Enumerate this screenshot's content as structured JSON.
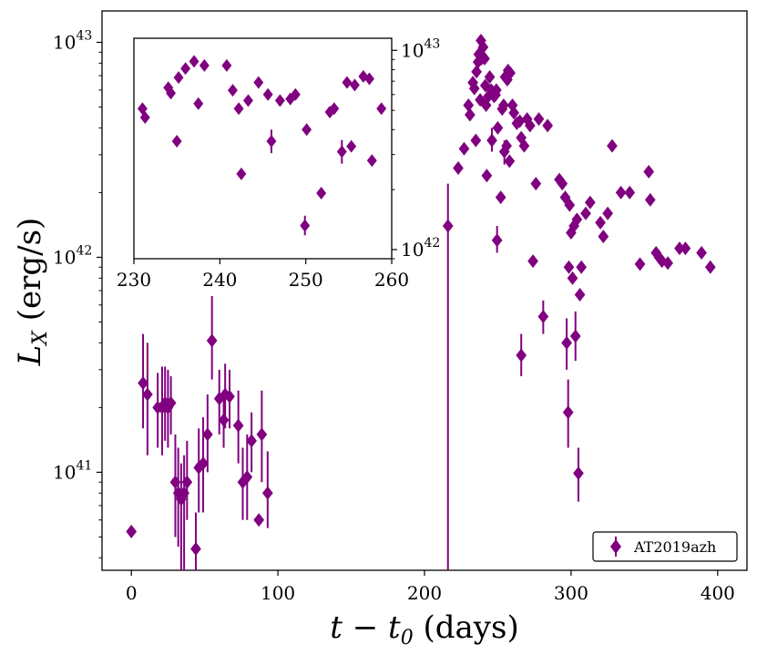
{
  "chart_data": [
    {
      "type": "scatter",
      "role": "main",
      "xlabel": "t − t",
      "xlabel_sub": "0",
      "xlabel_suffix": " (days)",
      "ylabel": "L",
      "ylabel_sub": "X",
      "ylabel_suffix": " (erg/s)",
      "xlim": [
        -20,
        420
      ],
      "ylim": [
        3.5e+40,
        1.4e+43
      ],
      "yscale": "log",
      "x_ticks": [
        0,
        100,
        200,
        300,
        400
      ],
      "x_tick_labels": [
        "0",
        "100",
        "200",
        "300",
        "400"
      ],
      "y_ticks": [
        1e+41,
        1e+42,
        1e+43
      ],
      "y_tick_labels": [
        {
          "base": "10",
          "exp": "41"
        },
        {
          "base": "10",
          "exp": "42"
        },
        {
          "base": "10",
          "exp": "43"
        }
      ],
      "legend": {
        "position": "lower-right",
        "label": "AT2019azh"
      },
      "series": [
        {
          "name": "AT2019azh",
          "color": "#800080",
          "marker": "diamond",
          "points": [
            {
              "x": 0,
              "y": 5.3e+40
            },
            {
              "x": 8,
              "y": 2.6e+41,
              "lo": 1.6e+41,
              "hi": 4.4e+41
            },
            {
              "x": 11,
              "y": 2.3e+41,
              "lo": 1.2e+41,
              "hi": 4e+41
            },
            {
              "x": 18,
              "y": 2e+41,
              "lo": 1.3e+41,
              "hi": 2.9e+41
            },
            {
              "x": 21,
              "y": 2e+41,
              "lo": 1.2e+41,
              "hi": 3.1e+41
            },
            {
              "x": 23,
              "y": 2.1e+41,
              "lo": 1.4e+41,
              "hi": 3.1e+41
            },
            {
              "x": 25,
              "y": 2e+41,
              "lo": 1.3e+41,
              "hi": 3e+41
            },
            {
              "x": 27,
              "y": 2.1e+41,
              "lo": 1.5e+41,
              "hi": 2.8e+41
            },
            {
              "x": 30,
              "y": 9e+40,
              "lo": 5e+40,
              "hi": 1.5e+41
            },
            {
              "x": 32,
              "y": 8e+40,
              "lo": 4.5e+40,
              "hi": 1.3e+41
            },
            {
              "x": 34,
              "y": 7.5e+40,
              "lo": 3e+40,
              "hi": 1.1e+41
            },
            {
              "x": 36,
              "y": 8e+40,
              "lo": 3.2e+40,
              "hi": 1.2e+41
            },
            {
              "x": 38,
              "y": 9e+40,
              "lo": 6e+40,
              "hi": 1.4e+41
            },
            {
              "x": 44,
              "y": 4.4e+40,
              "lo": 3e+40,
              "hi": 6.5e+40
            },
            {
              "x": 46,
              "y": 1.05e+41,
              "lo": 6.5e+40,
              "hi": 1.6e+41
            },
            {
              "x": 49,
              "y": 1.1e+41,
              "lo": 6.5e+40,
              "hi": 1.8e+41
            },
            {
              "x": 52,
              "y": 1.5e+41,
              "lo": 1e+41,
              "hi": 2.3e+41
            },
            {
              "x": 55,
              "y": 4.1e+41,
              "lo": 2.7e+41,
              "hi": 6.6e+41
            },
            {
              "x": 60,
              "y": 2.2e+41,
              "lo": 1.5e+41,
              "hi": 3e+41
            },
            {
              "x": 63,
              "y": 1.75e+41,
              "lo": 1.3e+41,
              "hi": 2.4e+41
            },
            {
              "x": 64,
              "y": 2.3e+41,
              "lo": 1.6e+41,
              "hi": 3.2e+41
            },
            {
              "x": 67,
              "y": 2.25e+41,
              "lo": 1.6e+41,
              "hi": 3e+41
            },
            {
              "x": 73,
              "y": 1.65e+41,
              "lo": 1.1e+41,
              "hi": 2.4e+41
            },
            {
              "x": 76,
              "y": 9e+40,
              "lo": 6e+40,
              "hi": 1.3e+41
            },
            {
              "x": 79,
              "y": 9.5e+40,
              "lo": 6e+40,
              "hi": 1.5e+41
            },
            {
              "x": 82,
              "y": 1.4e+41,
              "lo": 1e+41,
              "hi": 1.9e+41
            },
            {
              "x": 87,
              "y": 6e+40
            },
            {
              "x": 89,
              "y": 1.5e+41,
              "lo": 9e+40,
              "hi": 2.4e+41
            },
            {
              "x": 93,
              "y": 8e+40,
              "lo": 5.5e+40,
              "hi": 1.25e+41
            },
            {
              "x": 216,
              "y": 1.4e+42,
              "lo": 3e+40,
              "hi": 2.2e+42
            },
            {
              "x": 223,
              "y": 2.6e+42
            },
            {
              "x": 227,
              "y": 3.2e+42
            },
            {
              "x": 230,
              "y": 5.1e+42
            },
            {
              "x": 231,
              "y": 4.6e+42
            },
            {
              "x": 233,
              "y": 6.5e+42
            },
            {
              "x": 234,
              "y": 6.1e+42
            },
            {
              "x": 235,
              "y": 3.5e+42
            },
            {
              "x": 235.5,
              "y": 7.3e+42
            },
            {
              "x": 236.5,
              "y": 8.1e+42
            },
            {
              "x": 237,
              "y": 8.8e+42
            },
            {
              "x": 238,
              "y": 5.4e+42
            },
            {
              "x": 238.5,
              "y": 1.02e+43
            },
            {
              "x": 239,
              "y": 8.4e+42
            },
            {
              "x": 240,
              "y": 9.5e+42
            },
            {
              "x": 241,
              "y": 8.4e+42
            },
            {
              "x": 241.5,
              "y": 6.3e+42
            },
            {
              "x": 242,
              "y": 5.1e+42
            },
            {
              "x": 242.5,
              "y": 2.4e+42
            },
            {
              "x": 243.5,
              "y": 5.6e+42
            },
            {
              "x": 244.5,
              "y": 6.9e+42
            },
            {
              "x": 245.5,
              "y": 6e+42
            },
            {
              "x": 246,
              "y": 3.5e+42,
              "lo": 3.1e+42,
              "hi": 4e+42
            },
            {
              "x": 247.5,
              "y": 5.6e+42
            },
            {
              "x": 248.5,
              "y": 5.7e+42
            },
            {
              "x": 249,
              "y": 6e+42
            },
            {
              "x": 249.5,
              "y": 1.2e+42,
              "lo": 1.05e+42,
              "hi": 1.4e+42
            },
            {
              "x": 250,
              "y": 4e+42
            },
            {
              "x": 252,
              "y": 1.9e+42
            },
            {
              "x": 253,
              "y": 4.9e+42
            },
            {
              "x": 254,
              "y": 5.1e+42
            },
            {
              "x": 254.5,
              "y": 3.1e+42,
              "lo": 2.7e+42,
              "hi": 3.5e+42
            },
            {
              "x": 255,
              "y": 6.9e+42
            },
            {
              "x": 256,
              "y": 3.3e+42
            },
            {
              "x": 256.5,
              "y": 6.7e+42
            },
            {
              "x": 257,
              "y": 7.4e+42
            },
            {
              "x": 258,
              "y": 2.8e+42
            },
            {
              "x": 258.5,
              "y": 7.2e+42
            },
            {
              "x": 260,
              "y": 5.1e+42
            },
            {
              "x": 261,
              "y": 4.7e+42
            },
            {
              "x": 263,
              "y": 4.2e+42
            },
            {
              "x": 265,
              "y": 4.3e+42
            },
            {
              "x": 266,
              "y": 3.6e+42
            },
            {
              "x": 268,
              "y": 3.3e+42
            },
            {
              "x": 270,
              "y": 4.4e+42
            },
            {
              "x": 272,
              "y": 4.1e+42
            },
            {
              "x": 274,
              "y": 9.6e+41
            },
            {
              "x": 276,
              "y": 2.2e+42
            },
            {
              "x": 278,
              "y": 4.4e+42
            },
            {
              "x": 281,
              "y": 5.3e+41,
              "lo": 4.4e+41,
              "hi": 6.3e+41
            },
            {
              "x": 284,
              "y": 4.1e+42
            },
            {
              "x": 266,
              "y": 3.5e+41,
              "lo": 2.8e+41,
              "hi": 4.4e+41
            },
            {
              "x": 292,
              "y": 2.3e+42
            },
            {
              "x": 294,
              "y": 2.2e+42
            },
            {
              "x": 296,
              "y": 1.9e+42
            },
            {
              "x": 297,
              "y": 4e+41,
              "lo": 3e+41,
              "hi": 5.2e+41
            },
            {
              "x": 298,
              "y": 1.9e+41,
              "lo": 1.3e+41,
              "hi": 2.7e+41
            },
            {
              "x": 298.5,
              "y": 9e+41
            },
            {
              "x": 299,
              "y": 1.75e+42
            },
            {
              "x": 300,
              "y": 1.3e+42
            },
            {
              "x": 301,
              "y": 8e+41
            },
            {
              "x": 302,
              "y": 1.4e+42
            },
            {
              "x": 303,
              "y": 4.3e+41,
              "lo": 3.3e+41,
              "hi": 5.6e+41
            },
            {
              "x": 304,
              "y": 1.5e+42
            },
            {
              "x": 305,
              "y": 9.9e+40,
              "lo": 7.3e+40,
              "hi": 1.3e+41
            },
            {
              "x": 306,
              "y": 6.7e+41
            },
            {
              "x": 307,
              "y": 9e+41
            },
            {
              "x": 310,
              "y": 1.6e+42
            },
            {
              "x": 313,
              "y": 1.8e+42
            },
            {
              "x": 320,
              "y": 1.45e+42
            },
            {
              "x": 322,
              "y": 1.25e+42
            },
            {
              "x": 325,
              "y": 1.6e+42
            },
            {
              "x": 328,
              "y": 3.3e+42
            },
            {
              "x": 334,
              "y": 2e+42
            },
            {
              "x": 340,
              "y": 2e+42
            },
            {
              "x": 347,
              "y": 9.3e+41
            },
            {
              "x": 353,
              "y": 2.5e+42
            },
            {
              "x": 354,
              "y": 1.85e+42
            },
            {
              "x": 358,
              "y": 1.05e+42
            },
            {
              "x": 360,
              "y": 1e+42
            },
            {
              "x": 362,
              "y": 9.6e+41
            },
            {
              "x": 366,
              "y": 9.4e+41
            },
            {
              "x": 374,
              "y": 1.1e+42
            },
            {
              "x": 378,
              "y": 1.1e+42
            },
            {
              "x": 389,
              "y": 1.05e+42
            },
            {
              "x": 395,
              "y": 9e+41
            }
          ]
        }
      ]
    },
    {
      "type": "scatter",
      "role": "inset",
      "xlim": [
        230,
        260
      ],
      "ylim": [
        9e+41,
        1.15e+43
      ],
      "yscale": "log",
      "x_ticks": [
        230,
        240,
        250,
        260
      ],
      "x_tick_labels": [
        "230",
        "240",
        "250",
        "260"
      ],
      "y_ticks": [
        1e+42,
        1e+43
      ],
      "y_tick_labels": [
        {
          "base": "10",
          "exp": "42"
        },
        {
          "base": "10",
          "exp": "43"
        }
      ],
      "y_axis_side": "right",
      "series": [
        {
          "name": "AT2019azh",
          "color": "#800080",
          "marker": "diamond",
          "points": [
            {
              "x": 231,
              "y": 5.1e+42
            },
            {
              "x": 231.3,
              "y": 4.6e+42
            },
            {
              "x": 234,
              "y": 6.5e+42
            },
            {
              "x": 234.3,
              "y": 6.1e+42
            },
            {
              "x": 235,
              "y": 3.5e+42
            },
            {
              "x": 235.2,
              "y": 7.3e+42
            },
            {
              "x": 236,
              "y": 8.1e+42
            },
            {
              "x": 237,
              "y": 8.8e+42
            },
            {
              "x": 237.5,
              "y": 5.4e+42
            },
            {
              "x": 238.2,
              "y": 8.4e+42
            },
            {
              "x": 240.8,
              "y": 8.4e+42
            },
            {
              "x": 241.5,
              "y": 6.3e+42
            },
            {
              "x": 242.2,
              "y": 5.1e+42
            },
            {
              "x": 242.5,
              "y": 2.4e+42
            },
            {
              "x": 243.3,
              "y": 5.6e+42
            },
            {
              "x": 244.5,
              "y": 6.9e+42
            },
            {
              "x": 245.6,
              "y": 6e+42
            },
            {
              "x": 246,
              "y": 3.5e+42,
              "lo": 3.05e+42,
              "hi": 4e+42
            },
            {
              "x": 247,
              "y": 5.6e+42
            },
            {
              "x": 248.2,
              "y": 5.7e+42
            },
            {
              "x": 248.8,
              "y": 6e+42
            },
            {
              "x": 249.9,
              "y": 1.32e+42,
              "lo": 1.18e+42,
              "hi": 1.48e+42
            },
            {
              "x": 250.1,
              "y": 4e+42
            },
            {
              "x": 251.8,
              "y": 1.92e+42
            },
            {
              "x": 252.8,
              "y": 4.9e+42
            },
            {
              "x": 253.3,
              "y": 5.1e+42
            },
            {
              "x": 254.2,
              "y": 3.1e+42,
              "lo": 2.7e+42,
              "hi": 3.55e+42
            },
            {
              "x": 254.8,
              "y": 6.9e+42
            },
            {
              "x": 255.3,
              "y": 3.3e+42
            },
            {
              "x": 255.7,
              "y": 6.7e+42
            },
            {
              "x": 256.7,
              "y": 7.4e+42
            },
            {
              "x": 257.7,
              "y": 2.8e+42
            },
            {
              "x": 257.4,
              "y": 7.2e+42
            },
            {
              "x": 258.8,
              "y": 5.1e+42
            }
          ]
        }
      ]
    }
  ]
}
